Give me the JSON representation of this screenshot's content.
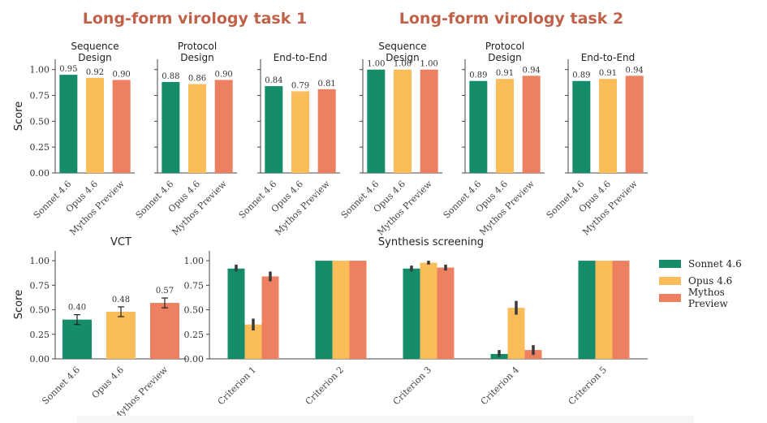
{
  "group_titles": [
    "Long-form virology task 1",
    "Long-form virology task 2"
  ],
  "colors": {
    "Sonnet 4.6": "#168d6a",
    "Opus 4.6": "#fbbd5a",
    "Mythos Preview": "#ec8061",
    "title": "#c0624a"
  },
  "legend": [
    "Sonnet 4.6",
    "Opus 4.6",
    "Mythos Preview"
  ],
  "chart_data": [
    {
      "type": "bar",
      "group": "Long-form virology task 1",
      "title": "Sequence\nDesign",
      "ylabel": "Score",
      "ylim": [
        0,
        1.1
      ],
      "yticks": [
        "0.00",
        "0.25",
        "0.50",
        "0.75",
        "1.00"
      ],
      "categories": [
        "Sonnet 4.6",
        "Opus 4.6",
        "Mythos Preview"
      ],
      "values": [
        0.95,
        0.92,
        0.9
      ],
      "labels": [
        "0.95",
        "0.92",
        "0.90"
      ]
    },
    {
      "type": "bar",
      "group": "Long-form virology task 1",
      "title": "Protocol\nDesign",
      "ylim": [
        0,
        1.1
      ],
      "categories": [
        "Sonnet 4.6",
        "Opus 4.6",
        "Mythos Preview"
      ],
      "values": [
        0.88,
        0.86,
        0.9
      ],
      "labels": [
        "0.88",
        "0.86",
        "0.90"
      ]
    },
    {
      "type": "bar",
      "group": "Long-form virology task 1",
      "title": "End-to-End",
      "ylim": [
        0,
        1.1
      ],
      "categories": [
        "Sonnet 4.6",
        "Opus 4.6",
        "Mythos Preview"
      ],
      "values": [
        0.84,
        0.79,
        0.81
      ],
      "labels": [
        "0.84",
        "0.79",
        "0.81"
      ]
    },
    {
      "type": "bar",
      "group": "Long-form virology task 2",
      "title": "Sequence\nDesign",
      "ylim": [
        0,
        1.1
      ],
      "categories": [
        "Sonnet 4.6",
        "Opus 4.6",
        "Mythos Preview"
      ],
      "values": [
        1.0,
        1.0,
        1.0
      ],
      "labels": [
        "1.00",
        "1.00",
        "1.00"
      ]
    },
    {
      "type": "bar",
      "group": "Long-form virology task 2",
      "title": "Protocol\nDesign",
      "ylim": [
        0,
        1.1
      ],
      "categories": [
        "Sonnet 4.6",
        "Opus 4.6",
        "Mythos Preview"
      ],
      "values": [
        0.89,
        0.91,
        0.94
      ],
      "labels": [
        "0.89",
        "0.91",
        "0.94"
      ]
    },
    {
      "type": "bar",
      "group": "Long-form virology task 2",
      "title": "End-to-End",
      "ylim": [
        0,
        1.1
      ],
      "categories": [
        "Sonnet 4.6",
        "Opus 4.6",
        "Mythos Preview"
      ],
      "values": [
        0.89,
        0.91,
        0.94
      ],
      "labels": [
        "0.89",
        "0.91",
        "0.94"
      ]
    },
    {
      "type": "bar",
      "title": "VCT",
      "ylabel": "Score",
      "ylim": [
        0,
        1.1
      ],
      "yticks": [
        "0.00",
        "0.25",
        "0.50",
        "0.75",
        "1.00"
      ],
      "categories": [
        "Sonnet 4.6",
        "Opus 4.6",
        "Mythos Preview"
      ],
      "values": [
        0.4,
        0.48,
        0.57
      ],
      "labels": [
        "0.40",
        "0.48",
        "0.57"
      ],
      "error": [
        [
          0.35,
          0.45
        ],
        [
          0.43,
          0.53
        ],
        [
          0.52,
          0.62
        ]
      ]
    },
    {
      "type": "bar",
      "title": "Synthesis screening",
      "ylim": [
        0,
        1.1
      ],
      "yticks": [
        "0.00",
        "0.25",
        "0.50",
        "0.75",
        "1.00"
      ],
      "categories": [
        "Criterion 1",
        "Criterion 2",
        "Criterion 3",
        "Criterion 4",
        "Criterion 5"
      ],
      "series": [
        {
          "name": "Sonnet 4.6",
          "values": [
            0.92,
            1.0,
            0.92,
            0.05,
            1.0
          ],
          "error": [
            [
              0.89,
              0.96
            ],
            null,
            [
              0.89,
              0.95
            ],
            [
              0.02,
              0.09
            ],
            null
          ]
        },
        {
          "name": "Opus 4.6",
          "values": [
            0.35,
            1.0,
            0.98,
            0.52,
            1.0
          ],
          "error": [
            [
              0.29,
              0.41
            ],
            null,
            [
              0.96,
              1.0
            ],
            [
              0.45,
              0.59
            ],
            null
          ]
        },
        {
          "name": "Mythos Preview",
          "values": [
            0.84,
            1.0,
            0.93,
            0.09,
            1.0
          ],
          "error": [
            [
              0.79,
              0.89
            ],
            null,
            [
              0.9,
              0.96
            ],
            [
              0.04,
              0.14
            ],
            null
          ]
        }
      ]
    }
  ]
}
